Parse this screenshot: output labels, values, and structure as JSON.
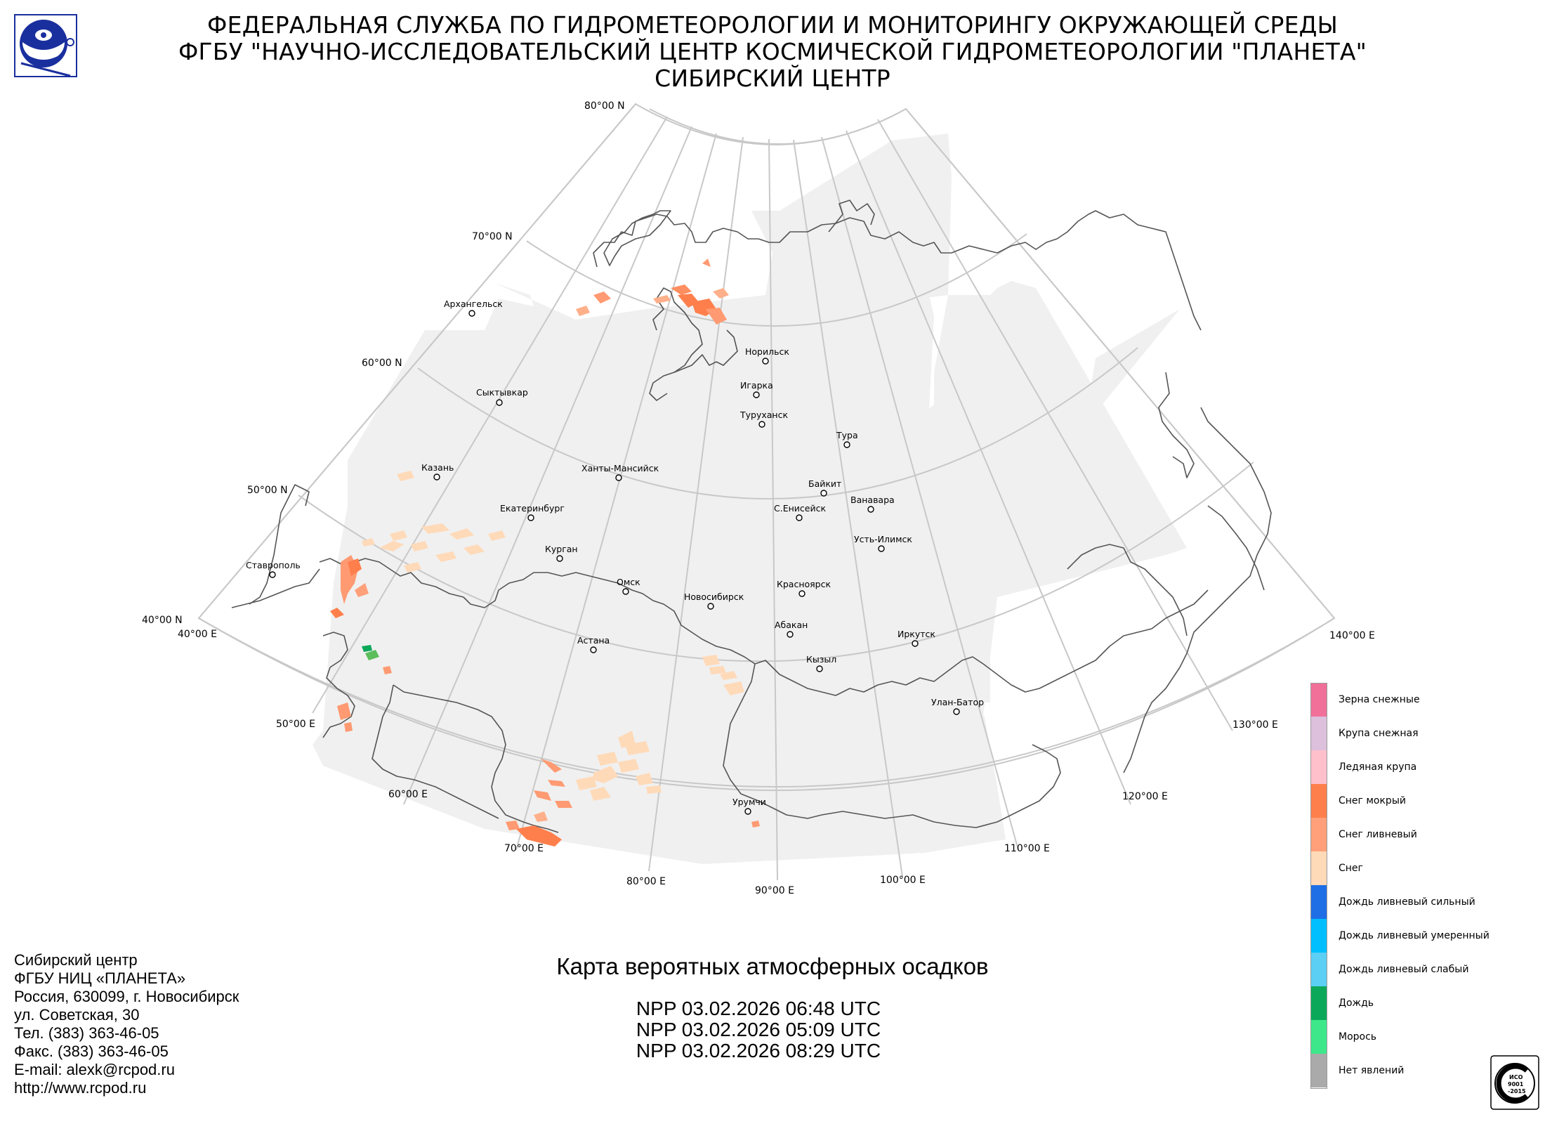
{
  "header": {
    "line1": "ФЕДЕРАЛЬНАЯ СЛУЖБА ПО ГИДРОМЕТЕОРОЛОГИИ И МОНИТОРИНГУ ОКРУЖАЮЩЕЙ СРЕДЫ",
    "line2": "ФГБУ \"НАУЧНО-ИССЛЕДОВАТЕЛЬСКИЙ ЦЕНТР КОСМИЧЕСКОЙ ГИДРОМЕТЕОРОЛОГИИ \"ПЛАНЕТА\"",
    "line3": "СИБИРСКИЙ ЦЕНТР"
  },
  "map": {
    "title": "Карта вероятных атмосферных осадков",
    "passes": [
      "NPP 03.02.2026  06:48 UTC",
      "NPP 03.02.2026  05:09 UTC",
      "NPP 03.02.2026  08:29 UTC"
    ],
    "lat_labels": [
      "80°00 N",
      "70°00 N",
      "60°00 N",
      "50°00 N",
      "40°00 N"
    ],
    "lon_labels": [
      "40°00 E",
      "50°00 E",
      "60°00 E",
      "70°00 E",
      "80°00 E",
      "90°00 E",
      "100°00 E",
      "110°00 E",
      "120°00 E",
      "130°00 E",
      "140°00 E"
    ],
    "cities": [
      "Архангельск",
      "Сыктывкар",
      "Казань",
      "Екатеринбург",
      "Ханты-Мансийск",
      "Курган",
      "Омск",
      "Новосибирск",
      "Астана",
      "Ставрополь",
      "Норильск",
      "Игарка",
      "Туруханск",
      "Тура",
      "Байкит",
      "С.Енисейск",
      "Ванавара",
      "Усть-Илимск",
      "Красноярск",
      "Абакан",
      "Кызыл",
      "Иркутск",
      "Улан-Батор",
      "Урумчи"
    ]
  },
  "legend": [
    {
      "label": "Зерна снежные",
      "color": "#f0709a"
    },
    {
      "label": "Крупа снежная",
      "color": "#dcc0dc"
    },
    {
      "label": "Ледяная крупа",
      "color": "#ffc0cc"
    },
    {
      "label": "Снег мокрый",
      "color": "#ff7f4c"
    },
    {
      "label": "Снег ливневый",
      "color": "#ffa07a"
    },
    {
      "label": "Снег",
      "color": "#ffdab9"
    },
    {
      "label": "Дождь ливневый сильный",
      "color": "#1e6ee6"
    },
    {
      "label": "Дождь ливневый умеренный",
      "color": "#00bfff"
    },
    {
      "label": "Дождь ливневый слабый",
      "color": "#5ccff5"
    },
    {
      "label": "Дождь",
      "color": "#0ca85a"
    },
    {
      "label": "Морось",
      "color": "#3ee88a"
    },
    {
      "label": "Нет явлений",
      "color": "#aaaaaa"
    }
  ],
  "contacts": [
    "Сибирский центр",
    "ФГБУ НИЦ «ПЛАНЕТА»",
    "Россия, 630099, г. Новосибирск",
    "ул. Советская, 30",
    "Тел. (383) 363-46-05",
    "Факс. (383) 363-46-05",
    "E-mail: alexk@rcpod.ru",
    "http://www.rcpod.ru"
  ],
  "iso_badge": {
    "lines": [
      "ИСО",
      "9001",
      "-2015"
    ]
  },
  "colors": {
    "grid": "#c8c8c8",
    "coverage": "#f0f0f0",
    "border": "#555555"
  }
}
